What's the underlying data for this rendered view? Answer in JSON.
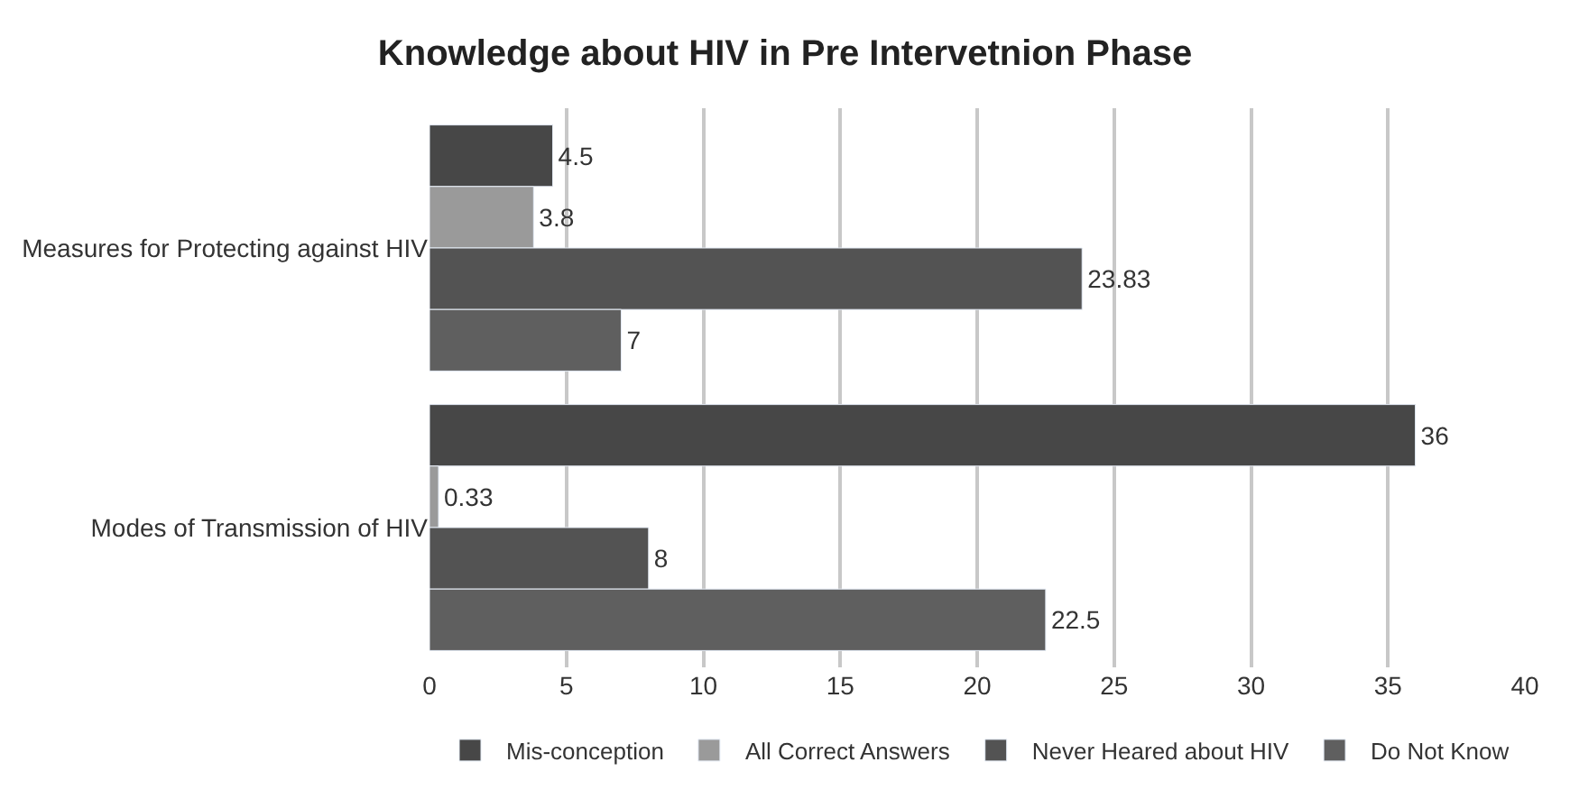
{
  "chart_data": {
    "type": "bar",
    "orientation": "horizontal",
    "title": "Knowledge about HIV in Pre Intervetnion Phase",
    "categories": [
      "Measures for Protecting against HIV",
      "Modes of Transmission of HIV"
    ],
    "series": [
      {
        "name": "Mis-conception",
        "color": "#474747",
        "values": [
          4.5,
          36
        ]
      },
      {
        "name": "All Correct Answers",
        "color": "#9a9a9a",
        "values": [
          3.8,
          0.33
        ]
      },
      {
        "name": "Never Heared about HIV",
        "color": "#535353",
        "values": [
          23.83,
          8
        ]
      },
      {
        "name": "Do Not Know",
        "color": "#5f5f5f",
        "values": [
          7,
          22.5
        ]
      }
    ],
    "xlim": [
      0,
      40
    ],
    "xticks": [
      0,
      5,
      10,
      15,
      20,
      25,
      30,
      35,
      40
    ],
    "grid": "x",
    "legend": "bottom",
    "data_labels": true
  }
}
